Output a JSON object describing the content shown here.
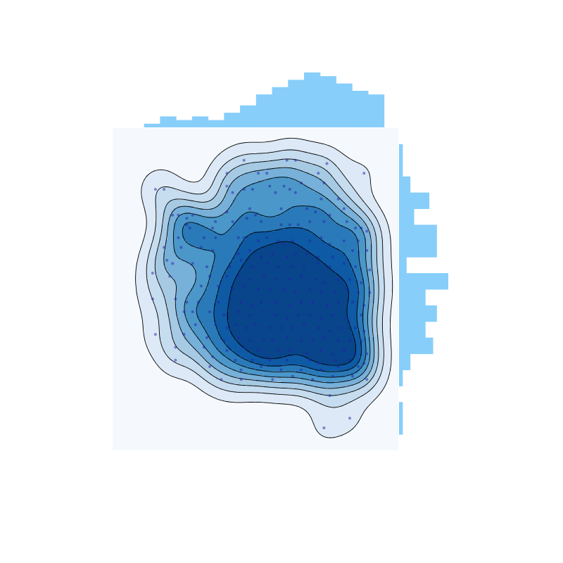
{
  "chart_data": {
    "type": "scatter",
    "subtype": "joint-kde-with-marginal-histograms",
    "title": "",
    "xlabel": "",
    "ylabel": "",
    "xlim": [
      0,
      10
    ],
    "ylim": [
      0,
      10
    ],
    "axes_visible": false,
    "grid": false,
    "colors": {
      "panel_bg": "#f5f9fe",
      "kde_levels": [
        "#dde9f6",
        "#c6dcef",
        "#a6cae4",
        "#77b0d9",
        "#4b97c9",
        "#2a7ab9",
        "#0e5aa5",
        "#08458a"
      ],
      "kde_line": "#000000",
      "points": "#2222aa",
      "marginal_hist": "#87cefa"
    },
    "kde_peaks": [
      {
        "x": 5.7,
        "y": 6.3
      },
      {
        "x": 6.8,
        "y": 5.3
      },
      {
        "x": 8.6,
        "y": 5.3
      },
      {
        "x": 7.8,
        "y": 4.5
      },
      {
        "x": 7.8,
        "y": 2.9
      },
      {
        "x": 6.6,
        "y": 7.4
      }
    ],
    "marginal_x": {
      "bin_edges": [
        1.1,
        1.66,
        2.22,
        2.78,
        3.34,
        3.9,
        4.46,
        5.02,
        5.58,
        6.14,
        6.7,
        7.26,
        7.82,
        8.38,
        8.94
      ],
      "counts": [
        1,
        3,
        2,
        3,
        2,
        4,
        6,
        9,
        11,
        13,
        15,
        14,
        12,
        10,
        9
      ]
    },
    "marginal_y": {
      "bin_edges": [
        0.5,
        1.0,
        1.5,
        2.0,
        2.5,
        3.0,
        3.5,
        4.0,
        4.5,
        5.0,
        5.5,
        6.0,
        6.5,
        7.0,
        7.5,
        8.0,
        8.5,
        9.0
      ],
      "counts": [
        1,
        1,
        0,
        1,
        3,
        9,
        7,
        10,
        7,
        13,
        2,
        10,
        10,
        4,
        8,
        3,
        1,
        1
      ]
    },
    "points": [
      [
        4.6,
        9.0
      ],
      [
        6.4,
        9.0
      ],
      [
        6.1,
        9.0
      ],
      [
        7.5,
        8.9
      ],
      [
        4.0,
        8.6
      ],
      [
        5.1,
        8.6
      ],
      [
        5.4,
        8.6
      ],
      [
        7.2,
        8.6
      ],
      [
        8.8,
        8.6
      ],
      [
        7.4,
        8.3
      ],
      [
        4.0,
        8.2
      ],
      [
        6.0,
        8.2
      ],
      [
        6.6,
        8.3
      ],
      [
        1.5,
        8.1
      ],
      [
        1.8,
        8.1
      ],
      [
        4.2,
        8.0
      ],
      [
        4.6,
        8.1
      ],
      [
        4.9,
        8.1
      ],
      [
        5.7,
        8.0
      ],
      [
        6.2,
        8.1
      ],
      [
        6.4,
        8.0
      ],
      [
        5.5,
        8.2
      ],
      [
        7.3,
        7.8
      ],
      [
        7.9,
        7.8
      ],
      [
        8.1,
        7.5
      ],
      [
        4.8,
        7.5
      ],
      [
        4.0,
        7.4
      ],
      [
        3.6,
        7.1
      ],
      [
        5.9,
        7.5
      ],
      [
        6.8,
        7.5
      ],
      [
        7.1,
        7.4
      ],
      [
        7.6,
        7.3
      ],
      [
        2.1,
        7.3
      ],
      [
        2.3,
        7.3
      ],
      [
        2.6,
        7.2
      ],
      [
        2.8,
        7.3
      ],
      [
        2.6,
        7.0
      ],
      [
        2.7,
        6.9
      ],
      [
        3.5,
        6.9
      ],
      [
        4.2,
        7.1
      ],
      [
        4.7,
        7.2
      ],
      [
        5.0,
        7.3
      ],
      [
        5.2,
        7.1
      ],
      [
        5.9,
        7.0
      ],
      [
        6.2,
        7.0
      ],
      [
        6.5,
        7.0
      ],
      [
        6.9,
        7.1
      ],
      [
        7.4,
        7.1
      ],
      [
        8.2,
        7.1
      ],
      [
        8.5,
        6.9
      ],
      [
        8.7,
        6.9
      ],
      [
        8.9,
        6.8
      ],
      [
        2.3,
        6.6
      ],
      [
        3.2,
        6.6
      ],
      [
        3.6,
        6.6
      ],
      [
        4.4,
        6.6
      ],
      [
        4.6,
        6.6
      ],
      [
        5.1,
        6.5
      ],
      [
        5.4,
        6.6
      ],
      [
        5.8,
        6.5
      ],
      [
        6.0,
        6.4
      ],
      [
        6.3,
        6.5
      ],
      [
        6.9,
        6.5
      ],
      [
        7.3,
        6.6
      ],
      [
        7.6,
        6.4
      ],
      [
        8.1,
        6.5
      ],
      [
        8.6,
        6.5
      ],
      [
        1.8,
        6.3
      ],
      [
        2.4,
        6.3
      ],
      [
        3.1,
        6.3
      ],
      [
        3.5,
        6.2
      ],
      [
        4.4,
        6.1
      ],
      [
        4.8,
        6.2
      ],
      [
        5.2,
        6.0
      ],
      [
        5.6,
        6.1
      ],
      [
        6.1,
        6.0
      ],
      [
        6.4,
        6.1
      ],
      [
        6.8,
        6.1
      ],
      [
        7.2,
        6.0
      ],
      [
        7.7,
        6.0
      ],
      [
        8.4,
        6.2
      ],
      [
        8.9,
        6.2
      ],
      [
        1.9,
        5.9
      ],
      [
        2.1,
        5.8
      ],
      [
        2.8,
        5.8
      ],
      [
        3.3,
        5.7
      ],
      [
        4.1,
        5.7
      ],
      [
        4.5,
        5.9
      ],
      [
        4.9,
        5.7
      ],
      [
        5.4,
        5.8
      ],
      [
        5.8,
        5.7
      ],
      [
        6.3,
        5.7
      ],
      [
        6.7,
        5.7
      ],
      [
        7.2,
        5.8
      ],
      [
        7.6,
        5.7
      ],
      [
        8.1,
        5.8
      ],
      [
        8.5,
        5.7
      ],
      [
        9.0,
        5.6
      ],
      [
        1.4,
        5.5
      ],
      [
        2.0,
        5.4
      ],
      [
        3.4,
        5.4
      ],
      [
        4.0,
        5.4
      ],
      [
        4.4,
        5.4
      ],
      [
        4.8,
        5.3
      ],
      [
        5.3,
        5.4
      ],
      [
        5.7,
        5.3
      ],
      [
        6.2,
        5.3
      ],
      [
        6.6,
        5.4
      ],
      [
        7.1,
        5.3
      ],
      [
        7.4,
        5.2
      ],
      [
        7.9,
        5.3
      ],
      [
        8.3,
        5.3
      ],
      [
        8.7,
        5.2
      ],
      [
        3.1,
        5.1
      ],
      [
        3.7,
        5.1
      ],
      [
        4.2,
        5.0
      ],
      [
        4.6,
        5.1
      ],
      [
        5.1,
        5.0
      ],
      [
        5.5,
        5.0
      ],
      [
        6.0,
        5.0
      ],
      [
        6.4,
        4.9
      ],
      [
        6.9,
        5.0
      ],
      [
        7.3,
        4.9
      ],
      [
        7.8,
        4.9
      ],
      [
        8.2,
        5.0
      ],
      [
        8.6,
        4.9
      ],
      [
        9.0,
        4.9
      ],
      [
        1.4,
        4.7
      ],
      [
        2.2,
        4.7
      ],
      [
        2.6,
        4.6
      ],
      [
        3.0,
        4.6
      ],
      [
        3.7,
        4.6
      ],
      [
        4.1,
        4.7
      ],
      [
        4.5,
        4.6
      ],
      [
        4.9,
        4.5
      ],
      [
        5.2,
        4.6
      ],
      [
        5.7,
        4.6
      ],
      [
        6.2,
        4.5
      ],
      [
        6.6,
        4.6
      ],
      [
        7.0,
        4.6
      ],
      [
        7.5,
        4.5
      ],
      [
        7.9,
        4.6
      ],
      [
        8.4,
        4.6
      ],
      [
        8.8,
        4.5
      ],
      [
        2.5,
        4.3
      ],
      [
        2.8,
        4.3
      ],
      [
        3.4,
        4.3
      ],
      [
        3.9,
        4.2
      ],
      [
        4.4,
        4.3
      ],
      [
        4.8,
        4.2
      ],
      [
        5.3,
        4.3
      ],
      [
        5.7,
        4.2
      ],
      [
        6.1,
        4.1
      ],
      [
        6.5,
        4.2
      ],
      [
        6.9,
        4.2
      ],
      [
        7.3,
        4.1
      ],
      [
        7.7,
        4.2
      ],
      [
        8.2,
        4.1
      ],
      [
        8.7,
        4.2
      ],
      [
        2.9,
        3.9
      ],
      [
        3.6,
        3.9
      ],
      [
        4.0,
        3.8
      ],
      [
        4.3,
        3.9
      ],
      [
        4.7,
        3.8
      ],
      [
        5.0,
        3.9
      ],
      [
        5.5,
        3.8
      ],
      [
        5.9,
        3.8
      ],
      [
        6.3,
        3.8
      ],
      [
        6.7,
        3.9
      ],
      [
        7.2,
        3.8
      ],
      [
        7.6,
        3.7
      ],
      [
        8.0,
        3.8
      ],
      [
        8.5,
        3.8
      ],
      [
        8.8,
        3.7
      ],
      [
        1.5,
        3.6
      ],
      [
        2.5,
        3.6
      ],
      [
        3.3,
        3.5
      ],
      [
        3.9,
        3.4
      ],
      [
        4.4,
        3.5
      ],
      [
        4.8,
        3.4
      ],
      [
        5.3,
        3.4
      ],
      [
        5.6,
        3.4
      ],
      [
        6.1,
        3.5
      ],
      [
        6.6,
        3.4
      ],
      [
        7.0,
        3.4
      ],
      [
        7.4,
        3.5
      ],
      [
        7.9,
        3.4
      ],
      [
        8.3,
        3.4
      ],
      [
        8.7,
        3.4
      ],
      [
        2.2,
        3.2
      ],
      [
        3.2,
        3.2
      ],
      [
        4.0,
        3.1
      ],
      [
        4.6,
        3.2
      ],
      [
        5.1,
        3.1
      ],
      [
        5.8,
        3.1
      ],
      [
        6.2,
        3.1
      ],
      [
        6.8,
        3.0
      ],
      [
        7.3,
        3.1
      ],
      [
        7.7,
        3.0
      ],
      [
        8.1,
        3.1
      ],
      [
        8.5,
        3.0
      ],
      [
        8.9,
        3.0
      ],
      [
        3.5,
        2.9
      ],
      [
        4.3,
        2.8
      ],
      [
        4.9,
        2.8
      ],
      [
        5.4,
        2.9
      ],
      [
        5.5,
        2.8
      ],
      [
        6.1,
        2.8
      ],
      [
        6.9,
        2.8
      ],
      [
        7.2,
        2.7
      ],
      [
        7.8,
        2.8
      ],
      [
        8.3,
        2.8
      ],
      [
        8.8,
        2.7
      ],
      [
        2.2,
        2.8
      ],
      [
        3.4,
        2.6
      ],
      [
        4.5,
        2.5
      ],
      [
        5.2,
        2.6
      ],
      [
        5.9,
        2.5
      ],
      [
        6.6,
        2.5
      ],
      [
        7.3,
        2.5
      ],
      [
        7.9,
        2.6
      ],
      [
        8.6,
        2.6
      ],
      [
        3.8,
        2.2
      ],
      [
        4.5,
        2.2
      ],
      [
        5.6,
        2.2
      ],
      [
        6.3,
        2.3
      ],
      [
        7.0,
        2.2
      ],
      [
        7.7,
        2.3
      ],
      [
        8.4,
        2.3
      ],
      [
        8.9,
        2.2
      ],
      [
        7.6,
        1.7
      ],
      [
        8.3,
        1.0
      ],
      [
        7.4,
        0.7
      ]
    ]
  }
}
